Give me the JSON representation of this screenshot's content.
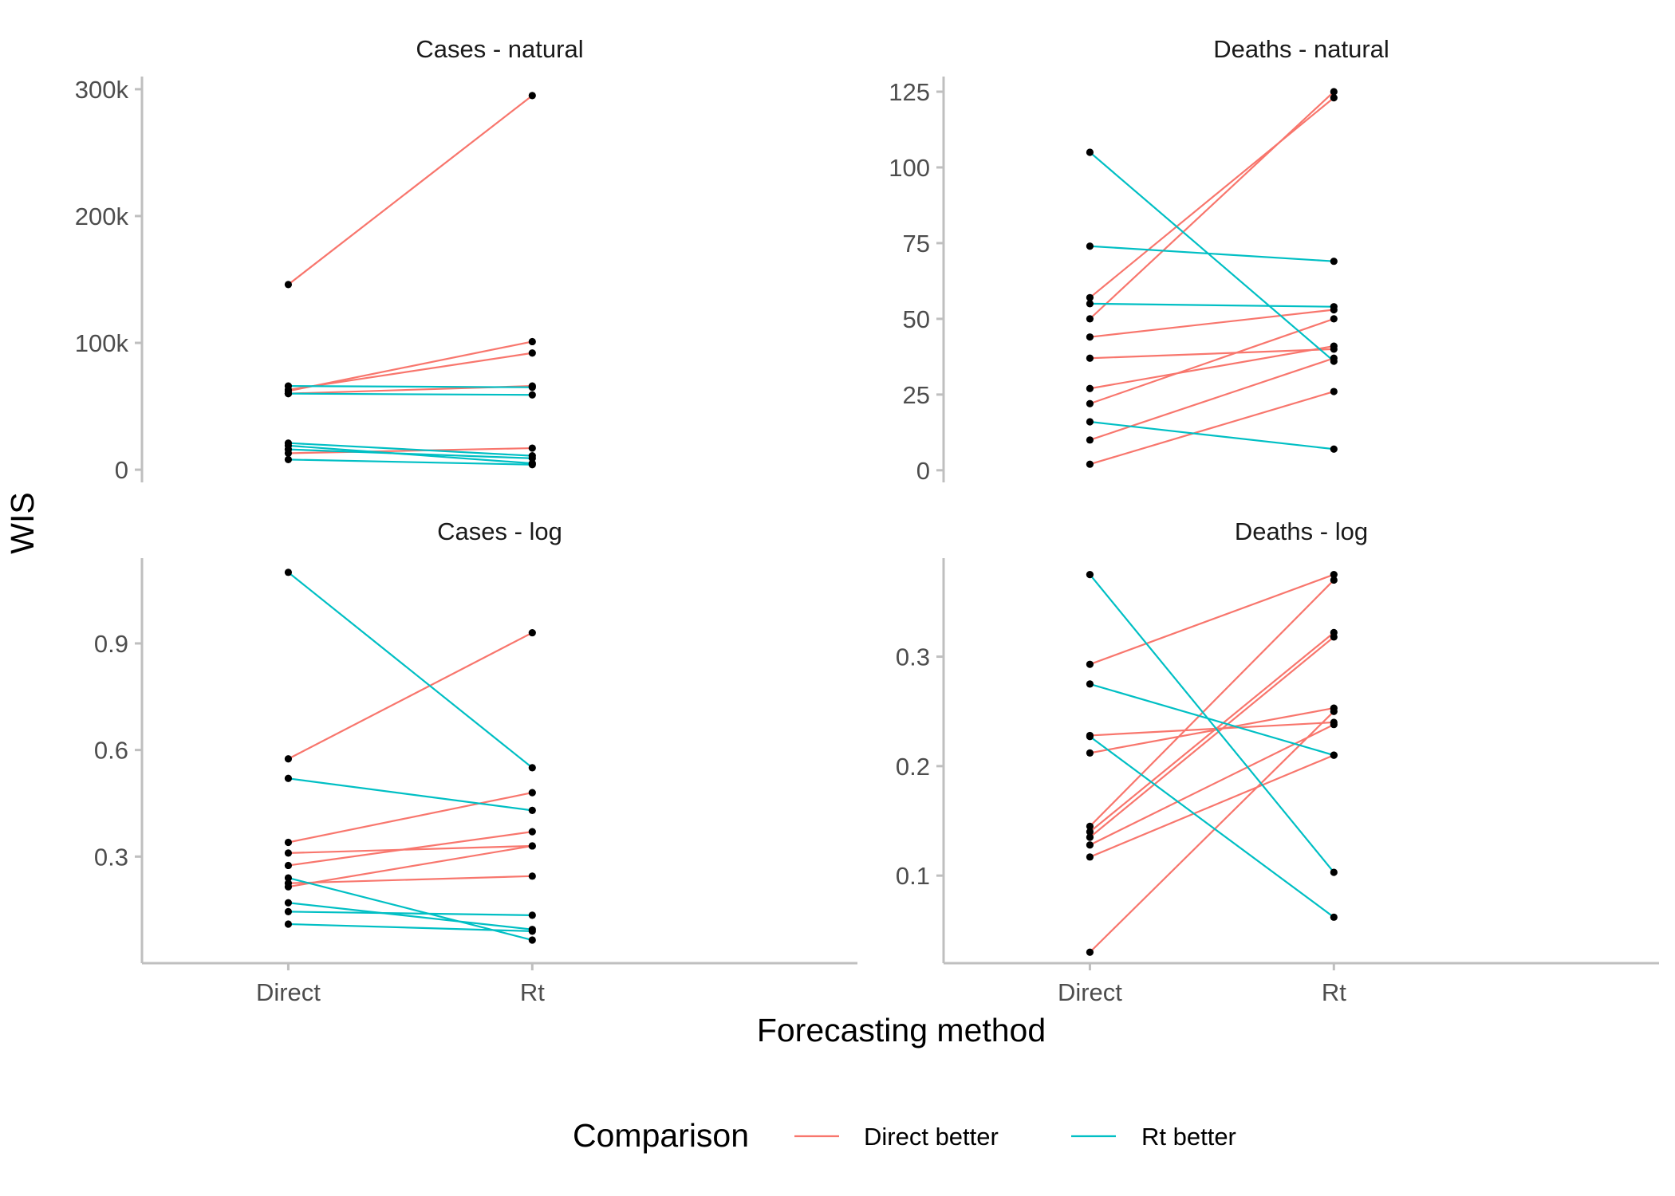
{
  "chart_data": {
    "type": "line",
    "xlabel": "Forecasting method",
    "ylabel": "WIS",
    "categories": [
      "Direct",
      "Rt"
    ],
    "legend": {
      "title": "Comparison",
      "position": "bottom",
      "entries": [
        {
          "key": "direct_better",
          "label": "Direct better",
          "color": "#F8766D"
        },
        {
          "key": "rt_better",
          "label": "Rt better",
          "color": "#00BFC4"
        }
      ]
    },
    "grid": false,
    "panels": [
      {
        "title": "Cases - natural",
        "ylim": [
          -10000,
          310000
        ],
        "yticks": [
          {
            "value": 0,
            "label": "0"
          },
          {
            "value": 100000,
            "label": "100k"
          },
          {
            "value": 200000,
            "label": "200k"
          },
          {
            "value": 300000,
            "label": "300k"
          }
        ],
        "series": [
          {
            "comparison": "direct_better",
            "values": [
              146000,
              295000
            ]
          },
          {
            "comparison": "direct_better",
            "values": [
              62000,
              101000
            ]
          },
          {
            "comparison": "direct_better",
            "values": [
              63000,
              92000
            ]
          },
          {
            "comparison": "direct_better",
            "values": [
              60000,
              66000
            ]
          },
          {
            "comparison": "direct_better",
            "values": [
              13000,
              17000
            ]
          },
          {
            "comparison": "rt_better",
            "values": [
              66000,
              65000
            ]
          },
          {
            "comparison": "rt_better",
            "values": [
              60000,
              59000
            ]
          },
          {
            "comparison": "rt_better",
            "values": [
              21000,
              11000
            ]
          },
          {
            "comparison": "rt_better",
            "values": [
              19000,
              5000
            ]
          },
          {
            "comparison": "rt_better",
            "values": [
              16000,
              9000
            ]
          },
          {
            "comparison": "rt_better",
            "values": [
              8000,
              4000
            ]
          }
        ]
      },
      {
        "title": "Deaths - natural",
        "ylim": [
          -4,
          130
        ],
        "yticks": [
          {
            "value": 0,
            "label": "0"
          },
          {
            "value": 25,
            "label": "25"
          },
          {
            "value": 50,
            "label": "50"
          },
          {
            "value": 75,
            "label": "75"
          },
          {
            "value": 100,
            "label": "100"
          },
          {
            "value": 125,
            "label": "125"
          }
        ],
        "series": [
          {
            "comparison": "direct_better",
            "values": [
              57,
              123
            ]
          },
          {
            "comparison": "direct_better",
            "values": [
              50,
              125
            ]
          },
          {
            "comparison": "direct_better",
            "values": [
              44,
              53
            ]
          },
          {
            "comparison": "direct_better",
            "values": [
              37,
              40
            ]
          },
          {
            "comparison": "direct_better",
            "values": [
              27,
              41
            ]
          },
          {
            "comparison": "direct_better",
            "values": [
              22,
              50
            ]
          },
          {
            "comparison": "direct_better",
            "values": [
              10,
              37
            ]
          },
          {
            "comparison": "direct_better",
            "values": [
              2,
              26
            ]
          },
          {
            "comparison": "rt_better",
            "values": [
              105,
              36
            ]
          },
          {
            "comparison": "rt_better",
            "values": [
              74,
              69
            ]
          },
          {
            "comparison": "rt_better",
            "values": [
              55,
              54
            ]
          },
          {
            "comparison": "rt_better",
            "values": [
              16,
              7
            ]
          }
        ]
      },
      {
        "title": "Cases - log",
        "ylim": [
          0,
          1.14
        ],
        "yticks": [
          {
            "value": 0.3,
            "label": "0.3"
          },
          {
            "value": 0.6,
            "label": "0.6"
          },
          {
            "value": 0.9,
            "label": "0.9"
          }
        ],
        "series": [
          {
            "comparison": "direct_better",
            "values": [
              0.575,
              0.93
            ]
          },
          {
            "comparison": "direct_better",
            "values": [
              0.34,
              0.48
            ]
          },
          {
            "comparison": "direct_better",
            "values": [
              0.31,
              0.33
            ]
          },
          {
            "comparison": "direct_better",
            "values": [
              0.275,
              0.37
            ]
          },
          {
            "comparison": "direct_better",
            "values": [
              0.225,
              0.245
            ]
          },
          {
            "comparison": "direct_better",
            "values": [
              0.215,
              0.33
            ]
          },
          {
            "comparison": "rt_better",
            "values": [
              1.1,
              0.55
            ]
          },
          {
            "comparison": "rt_better",
            "values": [
              0.52,
              0.43
            ]
          },
          {
            "comparison": "rt_better",
            "values": [
              0.24,
              0.065
            ]
          },
          {
            "comparison": "rt_better",
            "values": [
              0.17,
              0.095
            ]
          },
          {
            "comparison": "rt_better",
            "values": [
              0.145,
              0.135
            ]
          },
          {
            "comparison": "rt_better",
            "values": [
              0.11,
              0.09
            ]
          }
        ]
      },
      {
        "title": "Deaths - log",
        "ylim": [
          0.02,
          0.39
        ],
        "yticks": [
          {
            "value": 0.1,
            "label": "0.1"
          },
          {
            "value": 0.2,
            "label": "0.2"
          },
          {
            "value": 0.3,
            "label": "0.3"
          }
        ],
        "series": [
          {
            "comparison": "direct_better",
            "values": [
              0.293,
              0.375
            ]
          },
          {
            "comparison": "direct_better",
            "values": [
              0.228,
              0.24
            ]
          },
          {
            "comparison": "direct_better",
            "values": [
              0.212,
              0.253
            ]
          },
          {
            "comparison": "direct_better",
            "values": [
              0.145,
              0.37
            ]
          },
          {
            "comparison": "direct_better",
            "values": [
              0.14,
              0.322
            ]
          },
          {
            "comparison": "direct_better",
            "values": [
              0.135,
              0.318
            ]
          },
          {
            "comparison": "direct_better",
            "values": [
              0.128,
              0.238
            ]
          },
          {
            "comparison": "direct_better",
            "values": [
              0.117,
              0.21
            ]
          },
          {
            "comparison": "direct_better",
            "values": [
              0.03,
              0.25
            ]
          },
          {
            "comparison": "rt_better",
            "values": [
              0.375,
              0.103
            ]
          },
          {
            "comparison": "rt_better",
            "values": [
              0.275,
              0.21
            ]
          },
          {
            "comparison": "rt_better",
            "values": [
              0.227,
              0.062
            ]
          }
        ]
      }
    ]
  }
}
